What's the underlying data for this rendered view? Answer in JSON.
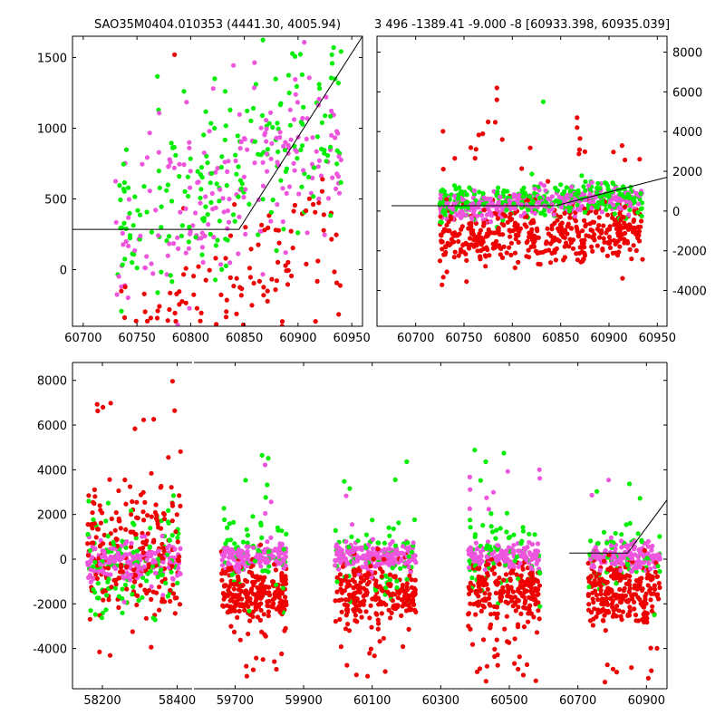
{
  "colors": {
    "green": "#00ee00",
    "red": "#ee0000",
    "magenta": "#ee55dd",
    "line": "#000000"
  },
  "titles": {
    "left": "SAO35M0404.010353 (4441.30, 4005.94)",
    "right": "3 496 -1389.41 -9.000 -8 [60933.398, 60935.039]"
  },
  "chart_data": [
    {
      "type": "scatter",
      "title": "SAO35M0404.010353 (4441.30, 4005.94)",
      "xlim": [
        60690,
        60960
      ],
      "ylim": [
        -400,
        1650
      ],
      "x_ticks": [
        "60700",
        "60750",
        "60800",
        "60850",
        "60900",
        "60950"
      ],
      "y_ticks": [
        "0",
        "500",
        "1000",
        "1500"
      ],
      "x_ticks_val": [
        60700,
        60750,
        60800,
        60850,
        60900,
        60950
      ],
      "y_ticks_val": [
        0,
        500,
        1000,
        1500
      ],
      "y_axis_side": "left",
      "point_cloud": {
        "x_range": [
          60730,
          60940
        ],
        "n": 520,
        "seed": 11
      },
      "line": {
        "x": [
          60690,
          60845,
          60960
        ],
        "y": [
          285,
          285,
          1650
        ]
      }
    },
    {
      "type": "scatter",
      "title": "3 496 -1389.41 -9.000 -8 [60933.398, 60935.039]",
      "xlim": [
        60660,
        60960
      ],
      "ylim": [
        -5800,
        8800
      ],
      "x_ticks": [
        "60700",
        "60750",
        "60800",
        "60850",
        "60900",
        "60950"
      ],
      "y_ticks": [
        "-4000",
        "-2000",
        "0",
        "2000",
        "4000",
        "6000",
        "8000"
      ],
      "x_ticks_val": [
        60700,
        60750,
        60800,
        60850,
        60900,
        60950
      ],
      "y_ticks_val": [
        -4000,
        -2000,
        0,
        2000,
        4000,
        6000,
        8000
      ],
      "y_axis_side": "right",
      "point_cloud": {
        "x_range": [
          60725,
          60935
        ],
        "n": 1100,
        "seed": 23
      },
      "line": {
        "x": [
          60675,
          60845,
          60960
        ],
        "y": [
          270,
          270,
          1700
        ]
      }
    },
    {
      "type": "scatter",
      "title": "",
      "ylim": [
        -5800,
        8800
      ],
      "y_ticks": [
        "-4000",
        "-2000",
        "0",
        "2000",
        "4000",
        "6000",
        "8000"
      ],
      "y_ticks_val": [
        -4000,
        -2000,
        0,
        2000,
        4000,
        6000,
        8000
      ],
      "y_axis_side": "left",
      "panels": [
        {
          "xlim": [
            58120,
            58440
          ],
          "x_ticks": [
            "58200",
            "58400"
          ],
          "x_ticks_val": [
            58200,
            58400
          ],
          "seasons": [
            {
              "x_range": [
                58160,
                58410
              ],
              "n": 520,
              "seed": 31,
              "style": "wide"
            }
          ]
        },
        {
          "xlim": [
            59580,
            60960
          ],
          "x_ticks": [
            "59700",
            "59900",
            "60100",
            "60300",
            "60500",
            "60700",
            "60900"
          ],
          "x_ticks_val": [
            59700,
            59900,
            60100,
            60300,
            60500,
            60700,
            60900
          ],
          "seasons": [
            {
              "x_range": [
                59660,
                59850
              ],
              "n": 480,
              "seed": 41,
              "style": "split"
            },
            {
              "x_range": [
                59990,
                60230
              ],
              "n": 520,
              "seed": 53,
              "style": "split"
            },
            {
              "x_range": [
                60380,
                60590
              ],
              "n": 460,
              "seed": 67,
              "style": "split"
            },
            {
              "x_range": [
                60730,
                60940
              ],
              "n": 460,
              "seed": 79,
              "style": "split"
            }
          ],
          "line": {
            "x": [
              60675,
              60845,
              60960
            ],
            "y": [
              270,
              270,
              2650
            ]
          }
        }
      ]
    }
  ]
}
